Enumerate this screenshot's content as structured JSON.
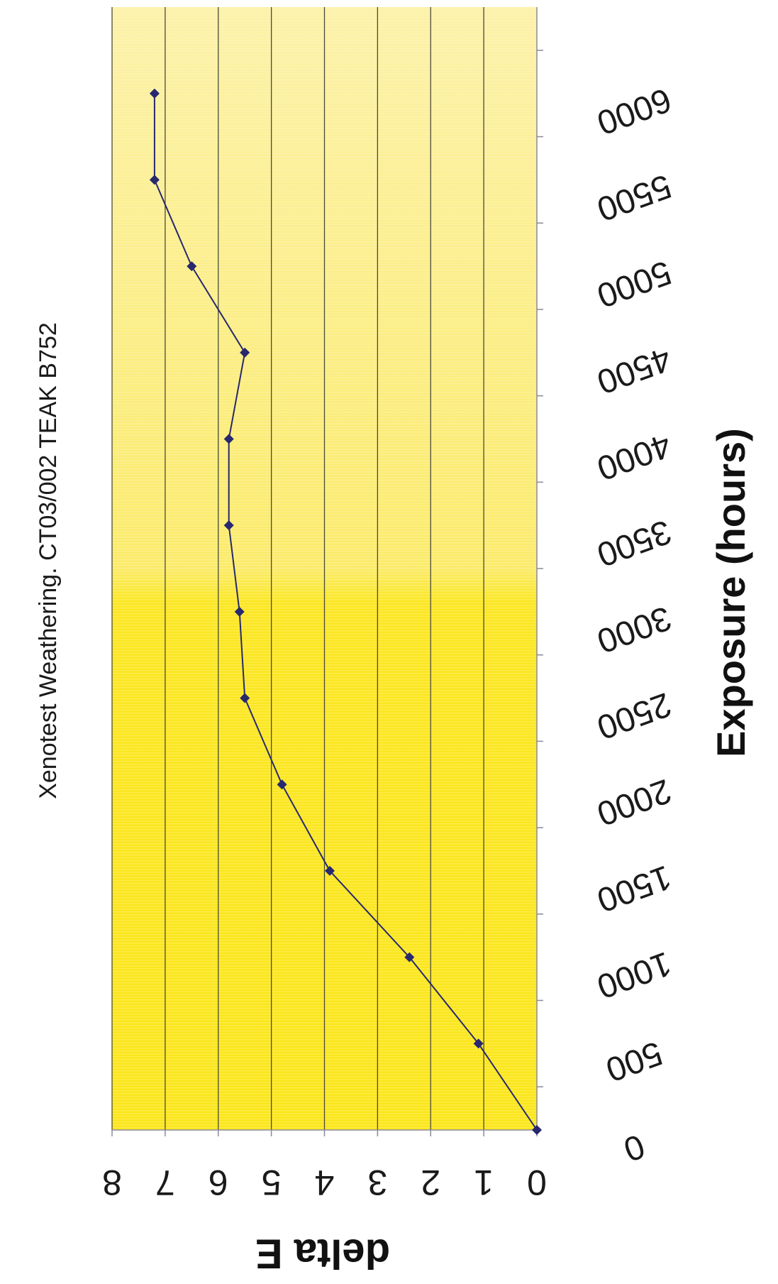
{
  "chart_data": {
    "type": "line",
    "title": "Xenotest Weathering.  CT03/002 TEAK B752",
    "xlabel": "Exposure (hours)",
    "ylabel": "delta E",
    "xlim": [
      0,
      6500
    ],
    "ylim": [
      0,
      8
    ],
    "x_ticks": [
      0,
      500,
      1000,
      1500,
      2000,
      2500,
      3000,
      3500,
      4000,
      4500,
      5000,
      5500,
      6000
    ],
    "y_ticks": [
      0,
      1,
      2,
      3,
      4,
      5,
      6,
      7,
      8
    ],
    "grid": "horizontal",
    "legend": "none",
    "series": [
      {
        "x": [
          0,
          500,
          1000,
          1500,
          2000,
          2500,
          3000,
          3500,
          4000,
          4500,
          5000,
          5500,
          6000
        ],
        "y": [
          0,
          1.1,
          2.4,
          3.9,
          4.8,
          5.5,
          5.6,
          5.8,
          5.8,
          5.5,
          6.5,
          7.2,
          7.2
        ],
        "color": "#27286e"
      }
    ]
  },
  "colors": {
    "plot_background_light": "#fbee9e",
    "plot_background_dark": "#fbe61c",
    "gridline": "#4a4a3a",
    "line": "#27286e",
    "marker": "#27286e"
  }
}
